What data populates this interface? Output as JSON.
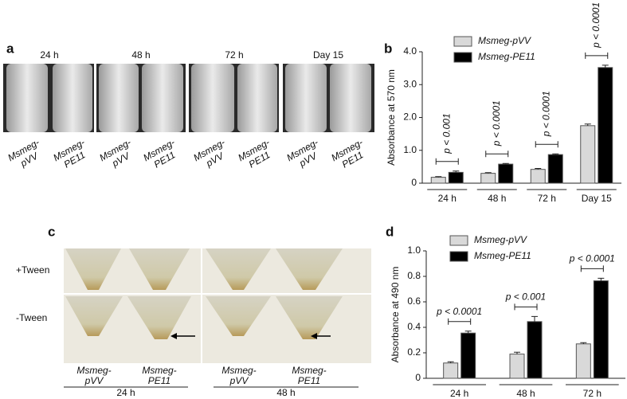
{
  "panel_labels": [
    "a",
    "b",
    "c",
    "d"
  ],
  "panel_a": {
    "times": [
      "24 h",
      "48 h",
      "72 h",
      "Day 15"
    ],
    "tubes": [
      [
        "Msmeg-",
        "pVV"
      ],
      [
        "Msmeg-",
        "PE11"
      ],
      [
        "Msmeg-",
        "pVV"
      ],
      [
        "Msmeg-",
        "PE11"
      ],
      [
        "Msmeg-",
        "pVV"
      ],
      [
        "Msmeg-",
        "PE11"
      ],
      [
        "Msmeg-",
        "pVV"
      ],
      [
        "Msmeg-",
        "PE11"
      ]
    ]
  },
  "panel_c": {
    "rows": [
      "+Tween",
      "-Tween"
    ],
    "tubes": [
      [
        "Msmeg-",
        "pVV"
      ],
      [
        "Msmeg-",
        "PE11"
      ],
      [
        "Msmeg-",
        "pVV"
      ],
      [
        "Msmeg-",
        "PE11"
      ]
    ],
    "times": [
      "24 h",
      "48 h"
    ]
  },
  "chart_data": [
    {
      "type": "bar",
      "y_label": "Absorbance at 570 nm",
      "categories": [
        "24 h",
        "48 h",
        "72 h",
        "Day 15"
      ],
      "series": [
        {
          "name": "Msmeg-pVV",
          "color": "#d9d9d9",
          "values": [
            0.18,
            0.3,
            0.42,
            1.75
          ],
          "errors": [
            0.02,
            0.02,
            0.03,
            0.05
          ]
        },
        {
          "name": "Msmeg-PE11",
          "color": "#000000",
          "values": [
            0.33,
            0.58,
            0.87,
            3.52
          ],
          "errors": [
            0.04,
            0.02,
            0.02,
            0.07
          ]
        }
      ],
      "annotations": [
        "p < 0.001",
        "p < 0.0001",
        "p < 0.0001",
        "p < 0.0001"
      ],
      "ylim": [
        0,
        4
      ],
      "yticks": [
        0,
        {
          "value": 1,
          "label": "1.0"
        },
        {
          "value": 2,
          "label": "2.0"
        },
        {
          "value": 3,
          "label": "3.0"
        },
        {
          "value": 4,
          "label": "4.0"
        }
      ]
    },
    {
      "type": "bar",
      "y_label": "Absorbance at 490 nm",
      "categories": [
        "24 h",
        "48 h",
        "72 h"
      ],
      "series": [
        {
          "name": "Msmeg-pVV",
          "color": "#d9d9d9",
          "values": [
            0.12,
            0.19,
            0.27
          ],
          "errors": [
            0.01,
            0.015,
            0.01
          ]
        },
        {
          "name": "Msmeg-PE11",
          "color": "#000000",
          "values": [
            0.355,
            0.445,
            0.765
          ],
          "errors": [
            0.015,
            0.04,
            0.02
          ]
        }
      ],
      "annotations": [
        "p < 0.0001",
        "p < 0.001",
        "p < 0.0001"
      ],
      "ylim": [
        0,
        1
      ],
      "yticks": [
        0,
        0.2,
        0.4,
        0.6,
        0.8,
        {
          "value": 1,
          "label": "1.0"
        }
      ]
    }
  ]
}
